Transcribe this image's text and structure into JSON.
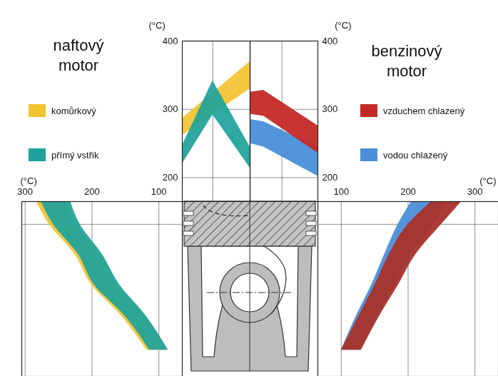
{
  "chart_data": [
    {
      "type": "area",
      "title": "naftový motor",
      "legend": "left",
      "x": [
        0,
        45,
        100
      ],
      "xlim": [
        0,
        100
      ],
      "xticks": [
        45
      ],
      "ylim": [
        165,
        400
      ],
      "yticks": [
        200,
        300,
        400
      ],
      "ylabel": "(°C)",
      "grid": true,
      "tick_labels": "y",
      "series": [
        {
          "name": "komůrkový",
          "color": "#f2c230",
          "values": [
            [
              262,
              287
            ],
            [
              293,
              324
            ],
            [
              330,
              370
            ]
          ]
        },
        {
          "name": "přímý vstřik",
          "color": "#1ea29b",
          "values": [
            [
              220,
              247
            ],
            [
              292,
              342
            ],
            [
              214,
              245
            ]
          ]
        }
      ]
    },
    {
      "type": "area",
      "title": "benzinový motor",
      "legend": "right",
      "x": [
        0,
        20,
        100
      ],
      "xlim": [
        0,
        100
      ],
      "xticks": [
        47
      ],
      "ylim": [
        165,
        400
      ],
      "yticks": [
        200,
        300,
        400
      ],
      "ylabel": "(°C)",
      "grid": true,
      "tick_labels": "y",
      "series": [
        {
          "name": "vodou chlazený",
          "color": "#4a8fd8",
          "values": [
            [
              250,
              285
            ],
            [
              245,
              282
            ],
            [
              202,
              245
            ]
          ]
        },
        {
          "name": "vzduchem chlazený",
          "color": "#c32a26",
          "values": [
            [
              293,
              325
            ],
            [
              290,
              328
            ],
            [
              236,
              276
            ]
          ]
        }
      ]
    },
    {
      "type": "area",
      "orientation": "horizontal",
      "y": [
        0,
        13,
        30,
        48,
        65,
        85
      ],
      "ylim": [
        0,
        100
      ],
      "yticks": [
        13
      ],
      "xlim": [
        305,
        65
      ],
      "xticks": [
        100,
        200,
        300
      ],
      "xlabel": "(°C)",
      "grid": true,
      "tick_labels": "x",
      "series": [
        {
          "name": "komůrkový",
          "color": "#f2c230",
          "values": [
            [
              238,
              283
            ],
            [
              223,
              264
            ],
            [
              188,
              226
            ],
            [
              162,
              200
            ],
            [
              122,
              157
            ],
            [
              88,
              118
            ]
          ]
        },
        {
          "name": "přímý vstřik",
          "color": "#1ea29b",
          "values": [
            [
              232,
              276
            ],
            [
              218,
              258
            ],
            [
              185,
              221
            ],
            [
              158,
              196
            ],
            [
              120,
              152
            ],
            [
              86,
              114
            ]
          ]
        }
      ]
    },
    {
      "type": "area",
      "orientation": "horizontal",
      "y": [
        0,
        13,
        30,
        48,
        65,
        85
      ],
      "ylim": [
        0,
        100
      ],
      "yticks": [
        13
      ],
      "xlim": [
        65,
        335
      ],
      "xticks": [
        100,
        200,
        300
      ],
      "xlabel": "(°C)",
      "grid": true,
      "tick_labels": "x",
      "series": [
        {
          "name": "vodou chlazený",
          "color": "#4a8fd8",
          "values": [
            [
              205,
              258
            ],
            [
              185,
              238
            ],
            [
              165,
              205
            ],
            [
              145,
              180
            ],
            [
              123,
              155
            ],
            [
              100,
              127
            ]
          ]
        },
        {
          "name": "vzduchem chlazený",
          "color": "#a8322a",
          "values": [
            [
              235,
              280
            ],
            [
              200,
              250
            ],
            [
              172,
              212
            ],
            [
              150,
              185
            ],
            [
              127,
              158
            ],
            [
              100,
              130
            ]
          ]
        }
      ]
    }
  ]
}
